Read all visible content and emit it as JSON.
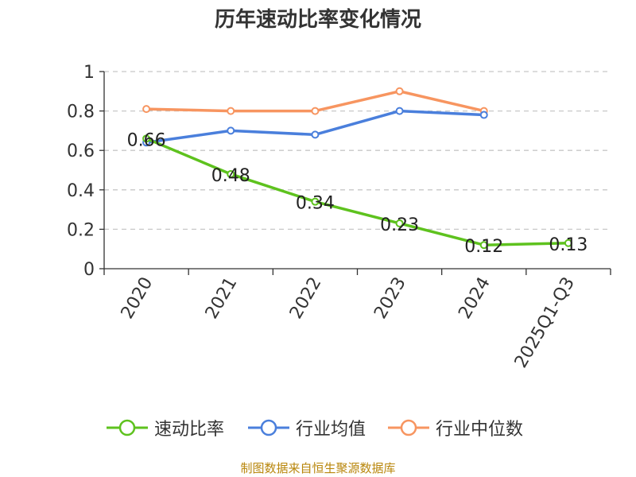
{
  "title": "历年速动比率变化情况",
  "source_note": "制图数据来自恒生聚源数据库",
  "chart_data": {
    "type": "line",
    "title": "历年速动比率变化情况",
    "categories": [
      "2020",
      "2021",
      "2022",
      "2023",
      "2024",
      "2025Q1-Q3"
    ],
    "ylim": [
      0,
      1
    ],
    "yticks": [
      "0",
      "0.2",
      "0.4",
      "0.6",
      "0.8",
      "1"
    ],
    "ytick_values": [
      0,
      0.2,
      0.4,
      0.6,
      0.8,
      1
    ],
    "grid": true,
    "legend_position": "bottom",
    "series": [
      {
        "name": "速动比率",
        "color": "#5ec21e",
        "values": [
          0.66,
          0.48,
          0.34,
          0.23,
          0.12,
          0.13
        ],
        "labels": [
          "0.66",
          "0.48",
          "0.34",
          "0.23",
          "0.12",
          "0.13"
        ]
      },
      {
        "name": "行业均值",
        "color": "#4a7fdc",
        "values": [
          0.64,
          0.7,
          0.68,
          0.8,
          0.78,
          null
        ]
      },
      {
        "name": "行业中位数",
        "color": "#f79560",
        "values": [
          0.81,
          0.8,
          0.8,
          0.9,
          0.8,
          null
        ]
      }
    ]
  }
}
